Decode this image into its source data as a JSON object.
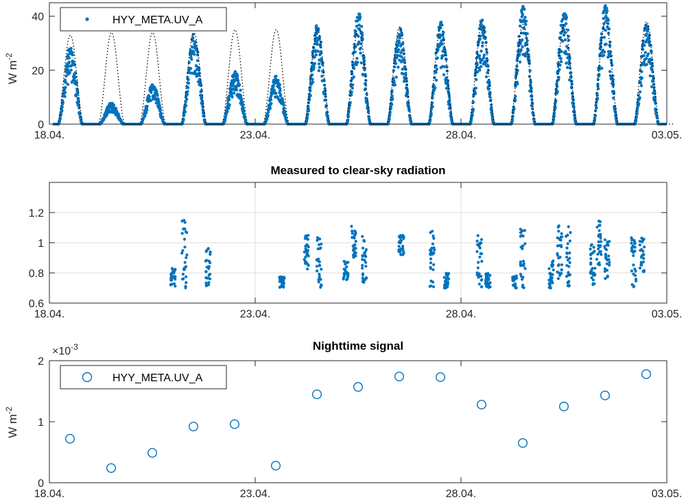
{
  "chart_data": [
    {
      "type": "scatter",
      "title": "",
      "ylabel": "W m",
      "ylabel_sup": "-2",
      "xlim": [
        "18.04.",
        "03.05."
      ],
      "ylim": [
        0,
        45
      ],
      "yticks": [
        0,
        20,
        40
      ],
      "xtick_labels": [
        "18.04.",
        "23.04.",
        "28.04.",
        "03.05."
      ],
      "grid": false,
      "legend": {
        "location": "top-left",
        "entries": [
          "HYY_META.UV_A"
        ]
      },
      "series": [
        {
          "name": "HYY_META.UV_A",
          "marker": "dot",
          "color": "#0072bd",
          "daily_peak": [
            {
              "day": "18.04.",
              "peak": 29
            },
            {
              "day": "19.04.",
              "peak": 8
            },
            {
              "day": "20.04.",
              "peak": 15
            },
            {
              "day": "21.04.",
              "peak": 34
            },
            {
              "day": "22.04.",
              "peak": 20
            },
            {
              "day": "23.04.",
              "peak": 18
            },
            {
              "day": "24.04.",
              "peak": 37
            },
            {
              "day": "25.04.",
              "peak": 42
            },
            {
              "day": "26.04.",
              "peak": 36
            },
            {
              "day": "27.04.",
              "peak": 38
            },
            {
              "day": "28.04.",
              "peak": 39
            },
            {
              "day": "29.04.",
              "peak": 44
            },
            {
              "day": "30.04.",
              "peak": 43
            },
            {
              "day": "01.05.",
              "peak": 45
            },
            {
              "day": "02.05.",
              "peak": 38
            }
          ]
        },
        {
          "name": "",
          "style": "dotted",
          "color": "#000000",
          "clear_sky_daily_peak": [
            33,
            34,
            34,
            34,
            35,
            35,
            35,
            36,
            36,
            36,
            37,
            37,
            37,
            38,
            38
          ]
        }
      ]
    },
    {
      "type": "scatter",
      "title": "Measured to clear-sky radiation",
      "ylabel": "",
      "xlim": [
        "18.04.",
        "03.05."
      ],
      "ylim": [
        0.6,
        1.4
      ],
      "yticks": [
        0.6,
        0.8,
        1,
        1.2
      ],
      "ytick_labels": [
        "0.6",
        "0.8",
        "1",
        "1.2"
      ],
      "xtick_labels": [
        "18.04.",
        "23.04.",
        "28.04.",
        "03.05."
      ],
      "grid": true,
      "series": [
        {
          "name": "",
          "color": "#0072bd",
          "clusters": [
            {
              "day": 21.0,
              "min": 0.7,
              "max": 0.83
            },
            {
              "day": 21.28,
              "min": 0.7,
              "max": 1.15
            },
            {
              "day": 21.85,
              "min": 0.7,
              "max": 0.97
            },
            {
              "day": 23.65,
              "min": 0.7,
              "max": 0.78
            },
            {
              "day": 24.25,
              "min": 0.82,
              "max": 1.05
            },
            {
              "day": 24.55,
              "min": 0.7,
              "max": 1.05
            },
            {
              "day": 25.2,
              "min": 0.75,
              "max": 0.88
            },
            {
              "day": 25.4,
              "min": 0.9,
              "max": 1.12
            },
            {
              "day": 25.65,
              "min": 0.72,
              "max": 1.05
            },
            {
              "day": 26.55,
              "min": 0.92,
              "max": 1.05
            },
            {
              "day": 27.3,
              "min": 0.7,
              "max": 1.08
            },
            {
              "day": 27.65,
              "min": 0.7,
              "max": 0.8
            },
            {
              "day": 28.45,
              "min": 0.7,
              "max": 1.05
            },
            {
              "day": 28.65,
              "min": 0.7,
              "max": 0.8
            },
            {
              "day": 29.3,
              "min": 0.7,
              "max": 0.78
            },
            {
              "day": 29.5,
              "min": 0.7,
              "max": 1.1
            },
            {
              "day": 30.2,
              "min": 0.7,
              "max": 0.88
            },
            {
              "day": 30.4,
              "min": 0.75,
              "max": 1.13
            },
            {
              "day": 30.6,
              "min": 0.7,
              "max": 1.12
            },
            {
              "day": 31.2,
              "min": 0.7,
              "max": 1.0
            },
            {
              "day": 31.35,
              "min": 0.85,
              "max": 1.15
            },
            {
              "day": 31.55,
              "min": 0.75,
              "max": 1.02
            },
            {
              "day": 32.2,
              "min": 0.7,
              "max": 1.05
            },
            {
              "day": 32.4,
              "min": 0.8,
              "max": 1.04
            }
          ]
        }
      ]
    },
    {
      "type": "scatter",
      "title": "Nighttime signal",
      "ylabel": "W m",
      "ylabel_sup": "-2",
      "scale_label": "×10",
      "scale_exp": "-3",
      "xlim": [
        "18.04.",
        "03.05."
      ],
      "ylim": [
        0,
        0.002
      ],
      "yticks": [
        0,
        0.001,
        0.002
      ],
      "ytick_labels": [
        "0",
        "1",
        "2"
      ],
      "xtick_labels": [
        "18.04.",
        "23.04.",
        "28.04.",
        "03.05."
      ],
      "grid": false,
      "legend": {
        "location": "top-left",
        "entries": [
          "HYY_META.UV_A"
        ]
      },
      "series": [
        {
          "name": "HYY_META.UV_A",
          "marker": "open-circle",
          "color": "#0072bd",
          "x": [
            18.5,
            19.5,
            20.5,
            21.5,
            22.5,
            23.5,
            24.5,
            25.5,
            26.5,
            27.5,
            28.5,
            29.5,
            30.5,
            31.5,
            32.5
          ],
          "y": [
            0.00072,
            0.00024,
            0.00049,
            0.00092,
            0.00096,
            0.00028,
            0.00145,
            0.00157,
            0.00174,
            0.00173,
            0.00128,
            0.00065,
            0.00125,
            0.00143,
            0.00178
          ]
        }
      ]
    }
  ]
}
